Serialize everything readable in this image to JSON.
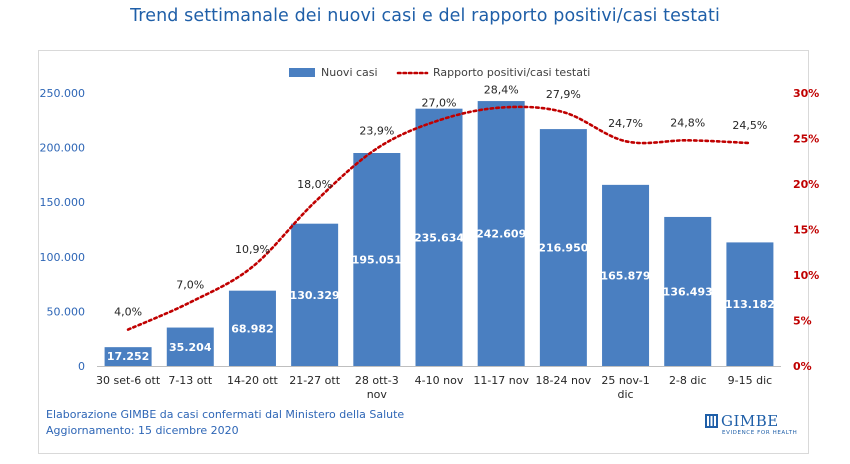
{
  "title": "Trend settimanale dei nuovi casi e del rapporto positivi/casi testati",
  "footer": {
    "line1": "Elaborazione GIMBE da casi confermati dal Ministero della Salute",
    "line2": "Aggiornamento: 15 dicembre 2020"
  },
  "logo": {
    "name": "GIMBE",
    "tagline": "EVIDENCE FOR HEALTH",
    "icon": "gimbe-logo-icon"
  },
  "colors": {
    "bar": "#4a7fc1",
    "line": "#c00000",
    "left_axis": "#2e66b6",
    "right_axis": "#c00000",
    "title": "#1f5fa8"
  },
  "chart_data": {
    "type": "bar",
    "title": "Trend settimanale dei nuovi casi e del rapporto positivi/casi testati",
    "categories": [
      "30 set-6 ott",
      "7-13 ott",
      "14-20 ott",
      "21-27 ott",
      "28 ott-3 nov",
      "4-10 nov",
      "11-17 nov",
      "18-24 nov",
      "25 nov-1 dic",
      "2-8 dic",
      "9-15 dic"
    ],
    "series": [
      {
        "name": "Nuovi casi",
        "type": "bar",
        "axis": "left",
        "values": [
          17252,
          35204,
          68982,
          130329,
          195051,
          235634,
          242609,
          216950,
          165879,
          136493,
          113182
        ],
        "labels": [
          "17.252",
          "35.204",
          "68.982",
          "130.329",
          "195.051",
          "235.634",
          "242.609",
          "216.950",
          "165.879",
          "136.493",
          "113.182"
        ]
      },
      {
        "name": "Rapporto positivi/casi testati",
        "type": "line",
        "style": "dotted",
        "axis": "right",
        "values": [
          4.0,
          7.0,
          10.9,
          18.0,
          23.9,
          27.0,
          28.4,
          27.9,
          24.7,
          24.8,
          24.5
        ],
        "labels": [
          "4,0%",
          "7,0%",
          "10,9%",
          "18,0%",
          "23,9%",
          "27,0%",
          "28,4%",
          "27,9%",
          "24,7%",
          "24,8%",
          "24,5%"
        ]
      }
    ],
    "y_left": {
      "min": 0,
      "max": 250000,
      "ticks": [
        "0",
        "50.000",
        "100.000",
        "150.000",
        "200.000",
        "250.000"
      ]
    },
    "y_right": {
      "min": 0,
      "max": 30,
      "ticks": [
        "0%",
        "5%",
        "10%",
        "15%",
        "20%",
        "25%",
        "30%"
      ]
    },
    "legend": "top-center",
    "grid": false
  }
}
